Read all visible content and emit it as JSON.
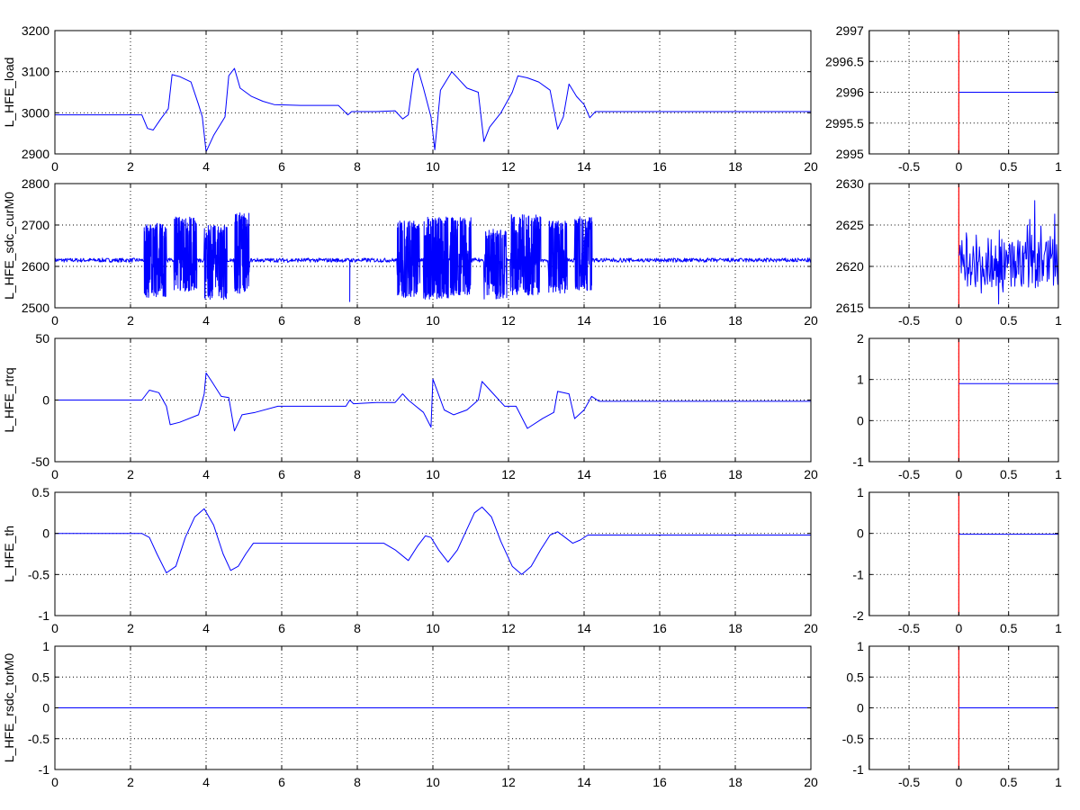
{
  "colors": {
    "trace": "#0000ff",
    "cursor": "#ff0000",
    "axes": "#000000",
    "background": "#ffffff"
  },
  "chart_data": [
    {
      "type": "line",
      "panel": "main",
      "ylabel": "L_HFE_load",
      "xlim": [
        0,
        20
      ],
      "ylim": [
        2900,
        3200
      ],
      "xticks": [
        0,
        2,
        4,
        6,
        8,
        10,
        12,
        14,
        16,
        18,
        20
      ],
      "yticks": [
        2900,
        3000,
        3100,
        3200
      ],
      "grid": true,
      "series": [
        {
          "x": [
            0,
            2.3,
            2.45,
            2.6,
            2.8,
            3.0,
            3.1,
            3.3,
            3.6,
            3.8,
            3.9,
            4.0,
            4.2,
            4.5,
            4.6,
            4.75,
            4.9,
            5.2,
            5.5,
            5.8,
            6.5,
            7.5,
            7.75,
            7.85,
            8.5,
            9.0,
            9.2,
            9.35,
            9.5,
            9.6,
            9.75,
            9.95,
            10.05,
            10.2,
            10.5,
            10.9,
            11.2,
            11.35,
            11.5,
            11.8,
            12.1,
            12.25,
            12.5,
            12.8,
            13.1,
            13.3,
            13.45,
            13.6,
            13.8,
            14.0,
            14.15,
            14.3,
            16,
            18,
            20
          ],
          "y": [
            2995,
            2995,
            2962,
            2958,
            2985,
            3010,
            3093,
            3088,
            3075,
            3020,
            2990,
            2905,
            2945,
            2990,
            3090,
            3108,
            3060,
            3040,
            3028,
            3020,
            3018,
            3018,
            2995,
            3003,
            3003,
            3005,
            2985,
            2995,
            3095,
            3108,
            3060,
            2990,
            2910,
            3055,
            3100,
            3060,
            3050,
            2930,
            2965,
            3000,
            3050,
            3090,
            3085,
            3075,
            3055,
            2960,
            2990,
            3070,
            3040,
            3020,
            2988,
            3003,
            3003,
            3003,
            3003
          ]
        }
      ]
    },
    {
      "type": "line",
      "panel": "zoom",
      "ylabel": "",
      "xlim": [
        -0.9,
        1
      ],
      "ylim": [
        2995,
        2997
      ],
      "xticks": [
        -0.5,
        0,
        0.5,
        1
      ],
      "yticks": [
        2995,
        2995.5,
        2996,
        2996.5,
        2997
      ],
      "grid": true,
      "cursor_x": 0,
      "series": [
        {
          "x": [
            0,
            1
          ],
          "y": [
            2996,
            2996
          ]
        }
      ]
    },
    {
      "type": "line",
      "panel": "main",
      "ylabel": "L_HFE_sdc_curM0",
      "xlim": [
        0,
        20
      ],
      "ylim": [
        2500,
        2800
      ],
      "xticks": [
        0,
        2,
        4,
        6,
        8,
        10,
        12,
        14,
        16,
        18,
        20
      ],
      "yticks": [
        2500,
        2600,
        2700,
        2800
      ],
      "grid": true,
      "series": [
        {
          "baseline": 2615,
          "noise_band": 5,
          "bursts": [
            {
              "x_start": 2.35,
              "x_end": 2.95,
              "min": 2525,
              "max": 2705
            },
            {
              "x_start": 3.15,
              "x_end": 3.75,
              "min": 2540,
              "max": 2720
            },
            {
              "x_start": 3.95,
              "x_end": 4.55,
              "min": 2520,
              "max": 2700
            },
            {
              "x_start": 4.75,
              "x_end": 5.15,
              "min": 2535,
              "max": 2730
            },
            {
              "x_start": 9.05,
              "x_end": 9.65,
              "min": 2525,
              "max": 2710
            },
            {
              "x_start": 9.75,
              "x_end": 10.4,
              "min": 2520,
              "max": 2720
            },
            {
              "x_start": 10.45,
              "x_end": 11.0,
              "min": 2530,
              "max": 2720
            },
            {
              "x_start": 11.35,
              "x_end": 11.95,
              "min": 2520,
              "max": 2690
            },
            {
              "x_start": 12.05,
              "x_end": 12.85,
              "min": 2530,
              "max": 2725
            },
            {
              "x_start": 13.05,
              "x_end": 13.55,
              "min": 2535,
              "max": 2710
            },
            {
              "x_start": 13.75,
              "x_end": 14.2,
              "min": 2540,
              "max": 2720
            }
          ],
          "spikes": [
            {
              "x": 7.8,
              "y": 2515
            }
          ]
        }
      ]
    },
    {
      "type": "line",
      "panel": "zoom",
      "ylabel": "",
      "xlim": [
        -0.9,
        1
      ],
      "ylim": [
        2615,
        2630
      ],
      "xticks": [
        -0.5,
        0,
        0.5,
        1
      ],
      "yticks": [
        2615,
        2620,
        2625,
        2630
      ],
      "grid": true,
      "cursor_x": 0,
      "series": [
        {
          "x_start": 0,
          "x_end": 1,
          "center": 2620.5,
          "range": [
            2615,
            2628
          ],
          "noisy": true
        }
      ]
    },
    {
      "type": "line",
      "panel": "main",
      "ylabel": "L_HFE_rtrq",
      "xlim": [
        0,
        20
      ],
      "ylim": [
        -50,
        50
      ],
      "xticks": [
        0,
        2,
        4,
        6,
        8,
        10,
        12,
        14,
        16,
        18,
        20
      ],
      "yticks": [
        -50,
        0,
        50
      ],
      "grid": true,
      "series": [
        {
          "x": [
            0,
            2.3,
            2.5,
            2.75,
            2.95,
            3.05,
            3.3,
            3.8,
            3.95,
            4.0,
            4.15,
            4.4,
            4.6,
            4.75,
            4.95,
            5.3,
            5.9,
            6.5,
            7.7,
            7.8,
            7.9,
            8.5,
            9.0,
            9.2,
            9.35,
            9.55,
            9.75,
            9.95,
            10.0,
            10.3,
            10.55,
            10.9,
            11.2,
            11.3,
            11.6,
            11.9,
            12.2,
            12.5,
            12.9,
            13.2,
            13.3,
            13.6,
            13.75,
            14.0,
            14.2,
            14.4,
            16,
            18,
            20
          ],
          "y": [
            0,
            0,
            8,
            6,
            -5,
            -20,
            -18,
            -12,
            5,
            22,
            15,
            3,
            2,
            -25,
            -12,
            -10,
            -5,
            -5,
            -5,
            0,
            -3,
            -2,
            -2,
            5,
            0,
            -5,
            -10,
            -22,
            17,
            -8,
            -12,
            -8,
            0,
            15,
            5,
            -5,
            -5,
            -23,
            -15,
            -10,
            7,
            5,
            -15,
            -8,
            3,
            -1,
            -1,
            -1,
            -1
          ]
        }
      ]
    },
    {
      "type": "line",
      "panel": "zoom",
      "ylabel": "",
      "xlim": [
        -0.9,
        1
      ],
      "ylim": [
        -1,
        2
      ],
      "xticks": [
        -0.5,
        0,
        0.5,
        1
      ],
      "yticks": [
        -1,
        0,
        1,
        2
      ],
      "grid": true,
      "cursor_x": 0,
      "series": [
        {
          "x": [
            0,
            1
          ],
          "y": [
            0.9,
            0.9
          ]
        }
      ]
    },
    {
      "type": "line",
      "panel": "main",
      "ylabel": "L_HFE_th",
      "xlim": [
        0,
        20
      ],
      "ylim": [
        -1,
        0.5
      ],
      "xticks": [
        0,
        2,
        4,
        6,
        8,
        10,
        12,
        14,
        16,
        18,
        20
      ],
      "yticks": [
        -1,
        -0.5,
        0,
        0.5
      ],
      "grid": true,
      "series": [
        {
          "x": [
            0,
            2.3,
            2.5,
            2.7,
            2.95,
            3.2,
            3.45,
            3.7,
            3.95,
            4.2,
            4.45,
            4.65,
            4.85,
            5.05,
            5.25,
            6,
            7,
            8,
            8.7,
            9.0,
            9.35,
            9.6,
            9.8,
            9.95,
            10.15,
            10.4,
            10.65,
            10.9,
            11.1,
            11.3,
            11.55,
            11.8,
            12.1,
            12.35,
            12.6,
            12.85,
            13.1,
            13.3,
            13.5,
            13.7,
            13.9,
            14.1,
            14.3,
            16,
            18,
            20
          ],
          "y": [
            0,
            0,
            -0.05,
            -0.25,
            -0.48,
            -0.4,
            -0.05,
            0.2,
            0.3,
            0.1,
            -0.25,
            -0.45,
            -0.4,
            -0.25,
            -0.12,
            -0.12,
            -0.12,
            -0.12,
            -0.12,
            -0.2,
            -0.33,
            -0.15,
            -0.03,
            -0.05,
            -0.2,
            -0.35,
            -0.2,
            0.05,
            0.25,
            0.32,
            0.2,
            -0.1,
            -0.4,
            -0.5,
            -0.4,
            -0.2,
            -0.02,
            0.02,
            -0.05,
            -0.12,
            -0.08,
            -0.02,
            -0.02,
            -0.02,
            -0.02,
            -0.02
          ]
        }
      ]
    },
    {
      "type": "line",
      "panel": "zoom",
      "ylabel": "",
      "xlim": [
        -0.9,
        1
      ],
      "ylim": [
        -2,
        1
      ],
      "xticks": [
        -0.5,
        0,
        0.5,
        1
      ],
      "yticks": [
        -2,
        -1,
        0,
        1
      ],
      "grid": true,
      "cursor_x": 0,
      "series": [
        {
          "x": [
            0,
            1
          ],
          "y": [
            -0.02,
            -0.02
          ]
        }
      ]
    },
    {
      "type": "line",
      "panel": "main",
      "ylabel": "L_HFE_rsdc_torM0",
      "xlim": [
        0,
        20
      ],
      "ylim": [
        -1,
        1
      ],
      "xticks": [
        0,
        2,
        4,
        6,
        8,
        10,
        12,
        14,
        16,
        18,
        20
      ],
      "yticks": [
        -1,
        -0.5,
        0,
        0.5,
        1
      ],
      "grid": true,
      "series": [
        {
          "x": [
            0,
            20
          ],
          "y": [
            0,
            0
          ]
        }
      ]
    },
    {
      "type": "line",
      "panel": "zoom",
      "ylabel": "",
      "xlim": [
        -0.9,
        1
      ],
      "ylim": [
        -1,
        1
      ],
      "xticks": [
        -0.5,
        0,
        0.5,
        1
      ],
      "yticks": [
        -1,
        -0.5,
        0,
        0.5,
        1
      ],
      "grid": true,
      "cursor_x": 0,
      "series": [
        {
          "x": [
            0,
            1
          ],
          "y": [
            0,
            0
          ]
        }
      ]
    }
  ]
}
